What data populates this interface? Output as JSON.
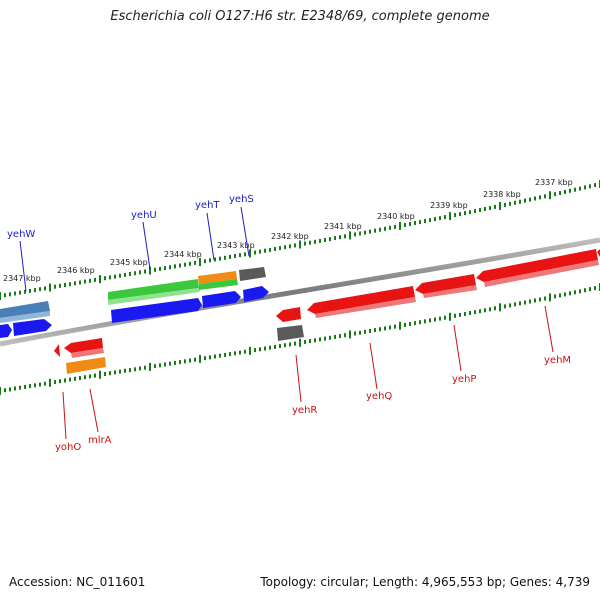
{
  "title": "Escherichia coli O127:H6 str. E2348/69, complete genome",
  "footer": {
    "accession": "Accession: NC_011601",
    "summary": "Topology: circular; Length: 4,965,553 bp; Genes: 4,739"
  },
  "colors": {
    "forward_label": "#1c1cc8",
    "reverse_label": "#cc1111",
    "scale_tick": "#1a7a1a",
    "backbone": "#808080"
  },
  "scale": {
    "unit": "kbp",
    "ticks": [
      {
        "label": "2347 kbp"
      },
      {
        "label": "2346 kbp"
      },
      {
        "label": "2345 kbp"
      },
      {
        "label": "2344 kbp"
      },
      {
        "label": "2343 kbp"
      },
      {
        "label": "2342 kbp"
      },
      {
        "label": "2341 kbp"
      },
      {
        "label": "2340 kbp"
      },
      {
        "label": "2339 kbp"
      },
      {
        "label": "2338 kbp"
      },
      {
        "label": "2337 kbp"
      }
    ]
  },
  "genes": [
    {
      "name": "yehW",
      "strand": "forward",
      "color": "#4a7fb8"
    },
    {
      "name": "yehU",
      "strand": "forward",
      "color": "#3cc83c"
    },
    {
      "name": "yehT",
      "strand": "forward",
      "color": "#f08c14"
    },
    {
      "name": "yehS",
      "strand": "forward",
      "color": "#5a5a5a"
    },
    {
      "name": "yehR",
      "strand": "reverse",
      "color": "#e81414"
    },
    {
      "name": "yehQ",
      "strand": "reverse",
      "color": "#e81414"
    },
    {
      "name": "yehP",
      "strand": "reverse",
      "color": "#e81414"
    },
    {
      "name": "yehM",
      "strand": "reverse",
      "color": "#e81414"
    },
    {
      "name": "yohO",
      "strand": "reverse",
      "color": "#e81414"
    },
    {
      "name": "mlrA",
      "strand": "reverse",
      "color": "#f08c14"
    }
  ]
}
